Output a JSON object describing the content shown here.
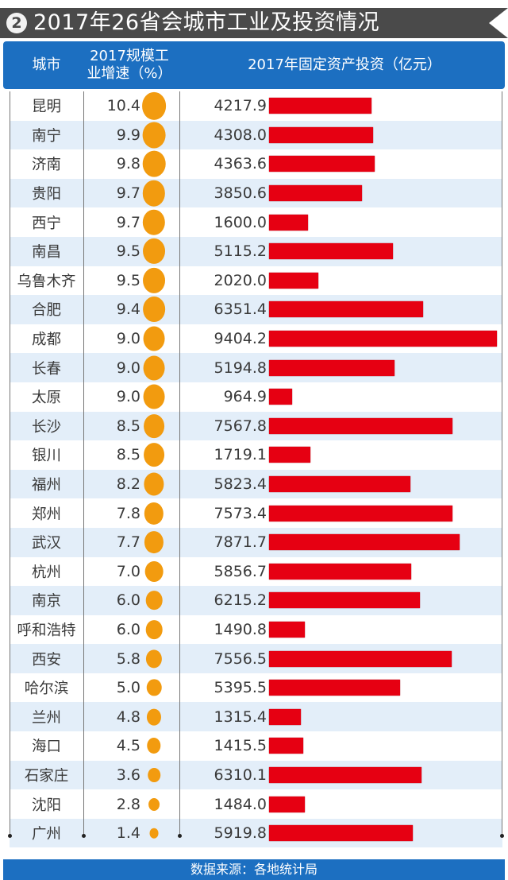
{
  "title": {
    "badge": "2",
    "text": "2017年26省会城市工业及投资情况"
  },
  "header": {
    "city": "城市",
    "rate_line1": "2017规模工",
    "rate_line2": "业增速（%）",
    "investment": "2017年固定资产投资（亿元）"
  },
  "rows": [
    {
      "city": "昆明",
      "rate": "10.4",
      "investment": "4217.9"
    },
    {
      "city": "南宁",
      "rate": "9.9",
      "investment": "4308.0"
    },
    {
      "city": "济南",
      "rate": "9.8",
      "investment": "4363.6"
    },
    {
      "city": "贵阳",
      "rate": "9.7",
      "investment": "3850.6"
    },
    {
      "city": "西宁",
      "rate": "9.7",
      "investment": "1600.0"
    },
    {
      "city": "南昌",
      "rate": "9.5",
      "investment": "5115.2"
    },
    {
      "city": "乌鲁木齐",
      "rate": "9.5",
      "investment": "2020.0"
    },
    {
      "city": "合肥",
      "rate": "9.4",
      "investment": "6351.4"
    },
    {
      "city": "成都",
      "rate": "9.0",
      "investment": "9404.2"
    },
    {
      "city": "长春",
      "rate": "9.0",
      "investment": "5194.8"
    },
    {
      "city": "太原",
      "rate": "9.0",
      "investment": "964.9"
    },
    {
      "city": "长沙",
      "rate": "8.5",
      "investment": "7567.8"
    },
    {
      "city": "银川",
      "rate": "8.5",
      "investment": "1719.1"
    },
    {
      "city": "福州",
      "rate": "8.2",
      "investment": "5823.4"
    },
    {
      "city": "郑州",
      "rate": "7.8",
      "investment": "7573.4"
    },
    {
      "city": "武汉",
      "rate": "7.7",
      "investment": "7871.7"
    },
    {
      "city": "杭州",
      "rate": "7.0",
      "investment": "5856.7"
    },
    {
      "city": "南京",
      "rate": "6.0",
      "investment": "6215.2"
    },
    {
      "city": "呼和浩特",
      "rate": "6.0",
      "investment": "1490.8"
    },
    {
      "city": "西安",
      "rate": "5.8",
      "investment": "7556.5"
    },
    {
      "city": "哈尔滨",
      "rate": "5.0",
      "investment": "5395.5"
    },
    {
      "city": "兰州",
      "rate": "4.8",
      "investment": "1315.4"
    },
    {
      "city": "海口",
      "rate": "4.5",
      "investment": "1415.5"
    },
    {
      "city": "石家庄",
      "rate": "3.6",
      "investment": "6310.1"
    },
    {
      "city": "沈阳",
      "rate": "2.8",
      "investment": "1484.0"
    },
    {
      "city": "广州",
      "rate": "1.4",
      "investment": "5919.8"
    }
  ],
  "footer": {
    "source": "数据来源：各地统计局"
  },
  "colors": {
    "title_bg": "#4a4a4a",
    "header_bg": "#1c6fc1",
    "row_alt_bg": "#e3eef9",
    "dot": "#f29b0f",
    "bar": "#e60012"
  },
  "chart_data": {
    "type": "table",
    "title": "2017年26省会城市工业及投资情况",
    "columns": [
      "城市",
      "2017规模工业增速（%）",
      "2017年固定资产投资（亿元）"
    ],
    "categories": [
      "昆明",
      "南宁",
      "济南",
      "贵阳",
      "西宁",
      "南昌",
      "乌鲁木齐",
      "合肥",
      "成都",
      "长春",
      "太原",
      "长沙",
      "银川",
      "福州",
      "郑州",
      "武汉",
      "杭州",
      "南京",
      "呼和浩特",
      "西安",
      "哈尔滨",
      "兰州",
      "海口",
      "石家庄",
      "沈阳",
      "广州"
    ],
    "series": [
      {
        "name": "2017规模工业增速（%）",
        "encoding": "dot-size",
        "values": [
          10.4,
          9.9,
          9.8,
          9.7,
          9.7,
          9.5,
          9.5,
          9.4,
          9.0,
          9.0,
          9.0,
          8.5,
          8.5,
          8.2,
          7.8,
          7.7,
          7.0,
          6.0,
          6.0,
          5.8,
          5.0,
          4.8,
          4.5,
          3.6,
          2.8,
          1.4
        ]
      },
      {
        "name": "2017年固定资产投资（亿元）",
        "encoding": "horizontal-bar",
        "values": [
          4217.9,
          4308.0,
          4363.6,
          3850.6,
          1600.0,
          5115.2,
          2020.0,
          6351.4,
          9404.2,
          5194.8,
          964.9,
          7567.8,
          1719.1,
          5823.4,
          7573.4,
          7871.7,
          5856.7,
          6215.2,
          1490.8,
          7556.5,
          5395.5,
          1315.4,
          1415.5,
          6310.1,
          1484.0,
          5919.8
        ]
      }
    ],
    "source": "数据来源：各地统计局"
  }
}
